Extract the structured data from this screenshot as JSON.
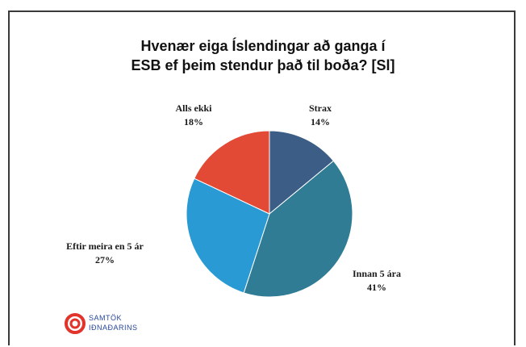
{
  "title": {
    "line1": "Hvenær eiga Íslendingar að ganga í",
    "line2": "ESB ef þeim stendur það til boða? [Sl]"
  },
  "logo": {
    "line1": "SAMTÖK",
    "line2": "IÐNAÐARINS",
    "color": "#27479a",
    "mark_color": "#e2342b"
  },
  "chart_data": {
    "type": "pie",
    "title": "Hvenær eiga Íslendingar að ganga í ESB ef þeim stendur það til boða? [Sl]",
    "slices": [
      {
        "label": "Strax",
        "value": 14,
        "value_label": "14%",
        "color": "#3c5d86"
      },
      {
        "label": "Innan 5 ára",
        "value": 41,
        "value_label": "41%",
        "color": "#2f7c94"
      },
      {
        "label": "Eftir meira en 5 ár",
        "value": 27,
        "value_label": "27%",
        "color": "#2a9ad4"
      },
      {
        "label": "Alls ekki",
        "value": 18,
        "value_label": "18%",
        "color": "#e24a35"
      }
    ],
    "start_angle": "12 o'clock, clockwise"
  }
}
